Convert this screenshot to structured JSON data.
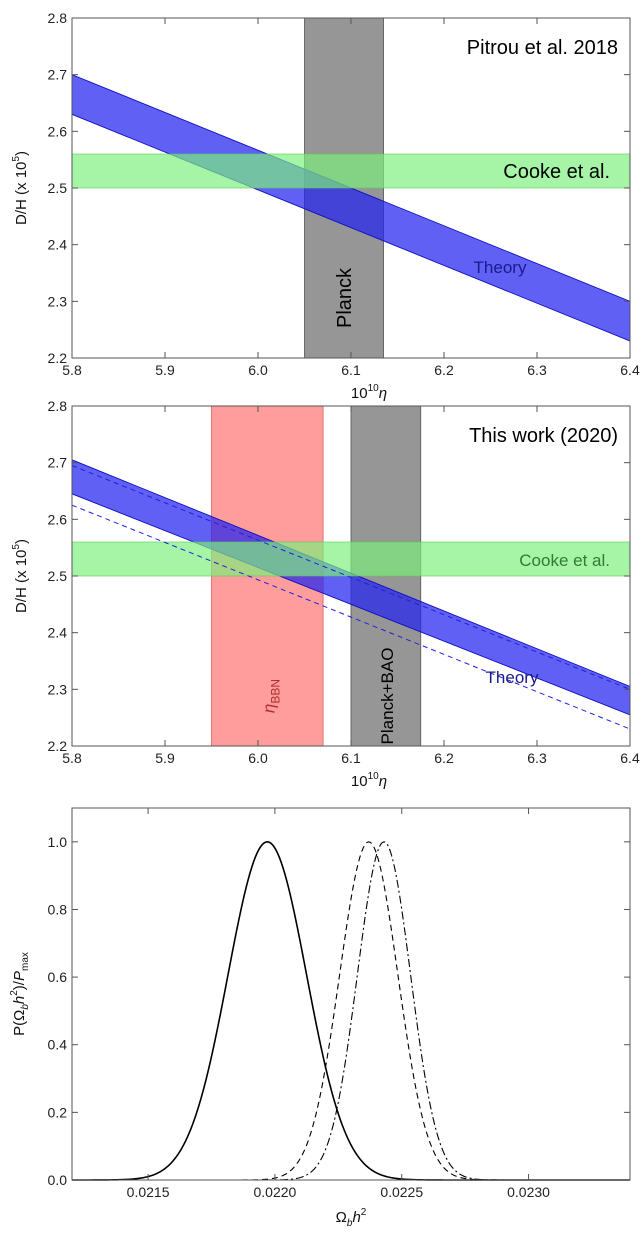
{
  "colors": {
    "theory_band": "#2323f0",
    "cooke_band": "#7cf07c",
    "planck_band": "#7f7f7f",
    "bbn_band": "#ff8080",
    "bbn_label": "#b03030",
    "cooke_label_panel2": "#2e7d32"
  },
  "chart_data": [
    {
      "type": "area",
      "annotation_title": "Pitrou et al. 2018",
      "xlabel": {
        "main": "10",
        "sup": "10",
        "var": "η"
      },
      "ylabel": {
        "main": "D/H  (x 10",
        "sup": "5",
        "end": ")"
      },
      "xlim": [
        5.8,
        6.4
      ],
      "ylim": [
        2.2,
        2.8
      ],
      "xticks": [
        "5.8",
        "5.9",
        "6.0",
        "6.1",
        "6.2",
        "6.3",
        "6.4"
      ],
      "yticks": [
        "2.2",
        "2.3",
        "2.4",
        "2.5",
        "2.6",
        "2.7",
        "2.8"
      ],
      "grid": false,
      "bands": [
        {
          "name": "Cooke et al.",
          "orientation": "horizontal",
          "range": [
            2.5,
            2.56
          ]
        },
        {
          "name": "Planck",
          "orientation": "vertical",
          "range": [
            6.05,
            6.135
          ]
        }
      ],
      "theory": {
        "name": "Theory",
        "x": [
          5.8,
          6.4
        ],
        "upper": [
          2.7,
          2.3
        ],
        "lower": [
          2.63,
          2.23
        ]
      }
    },
    {
      "type": "area",
      "annotation_title": "This work (2020)",
      "xlabel": {
        "main": "10",
        "sup": "10",
        "var": "η"
      },
      "ylabel": {
        "main": "D/H  (x 10",
        "sup": "5",
        "end": ")"
      },
      "xlim": [
        5.8,
        6.4
      ],
      "ylim": [
        2.2,
        2.8
      ],
      "xticks": [
        "5.8",
        "5.9",
        "6.0",
        "6.1",
        "6.2",
        "6.3",
        "6.4"
      ],
      "yticks": [
        "2.2",
        "2.3",
        "2.4",
        "2.5",
        "2.6",
        "2.7",
        "2.8"
      ],
      "grid": false,
      "bands": [
        {
          "name": "Cooke et al.",
          "orientation": "horizontal",
          "range": [
            2.5,
            2.56
          ]
        },
        {
          "name": "η",
          "sub": "BBN",
          "orientation": "vertical",
          "range": [
            5.95,
            6.07
          ]
        },
        {
          "name": "Planck+BAO",
          "orientation": "vertical",
          "range": [
            6.1,
            6.175
          ]
        }
      ],
      "theory": {
        "name": "Theory",
        "x": [
          5.8,
          6.4
        ],
        "upper": [
          2.705,
          2.305
        ],
        "lower": [
          2.645,
          2.255
        ]
      },
      "dashed_lines": [
        {
          "x": [
            5.8,
            6.4
          ],
          "y": [
            2.695,
            2.3
          ]
        },
        {
          "x": [
            5.8,
            6.4
          ],
          "y": [
            2.625,
            2.23
          ]
        }
      ]
    },
    {
      "type": "line",
      "xlabel": {
        "main": "Ω",
        "sub": "b",
        "var": "h",
        "sup": "2"
      },
      "ylabel": {
        "main": "P(Ω",
        "sub": "b",
        "mid": "h",
        "sup": "2",
        "end": ")/",
        "var": "P",
        "sub2": "max"
      },
      "xlim": [
        0.0212,
        0.0234
      ],
      "ylim": [
        0,
        1.1
      ],
      "xticks": [
        "0.0215",
        "0.0220",
        "0.0225",
        "0.0230"
      ],
      "yticks": [
        "0.0",
        "0.2",
        "0.4",
        "0.6",
        "0.8",
        "1.0"
      ],
      "grid": false,
      "series": [
        {
          "style": "solid",
          "peak": 1.0,
          "mean": 0.02197,
          "sigma": 0.000155
        },
        {
          "style": "dashed",
          "peak": 1.0,
          "mean": 0.02237,
          "sigma": 0.000115
        },
        {
          "style": "dashdot",
          "peak": 1.0,
          "mean": 0.02243,
          "sigma": 0.000105
        }
      ]
    }
  ]
}
